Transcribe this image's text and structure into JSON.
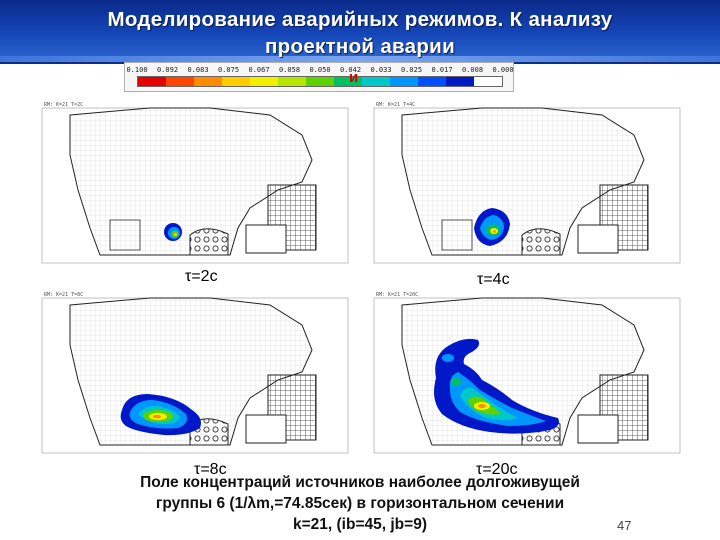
{
  "title": {
    "line1": "Моделирование аварийных режимов. К анализу",
    "line2": "проектной аварии"
  },
  "scale": {
    "labels": [
      "0.100",
      "0.092",
      "0.083",
      "0.075",
      "0.067",
      "0.058",
      "0.050",
      "0.042",
      "0.033",
      "0.025",
      "0.017",
      "0.008",
      "0.000"
    ],
    "colors": [
      "#e60000",
      "#ff4500",
      "#ff8c00",
      "#ffcc00",
      "#f0f000",
      "#b4e600",
      "#5fd000",
      "#00c060",
      "#00c8c8",
      "#0096ff",
      "#0050ff",
      "#0018c8",
      "#ffffff"
    ],
    "marker": "и"
  },
  "panels": [
    {
      "caption": "τ=2с",
      "header": "RM: K=21  T=2C"
    },
    {
      "caption": "τ=4с",
      "header": "RM: K=21  T=4C"
    },
    {
      "caption": "τ=8с",
      "header": "RM: K=21  T=8C"
    },
    {
      "caption": "τ=20с",
      "header": "RM: K=21  T=20C"
    }
  ],
  "caption": {
    "line1": "Поле концентраций источников наиболее долгоживущей",
    "line2": "группы 6 (1/λm,=74.85сек) в горизонтальном сечении",
    "line3": "k=21, (ib=45, jb=9)"
  },
  "page_number": "47",
  "colors": {
    "title_band": "#1546b8",
    "title_text": "#ffffff"
  }
}
